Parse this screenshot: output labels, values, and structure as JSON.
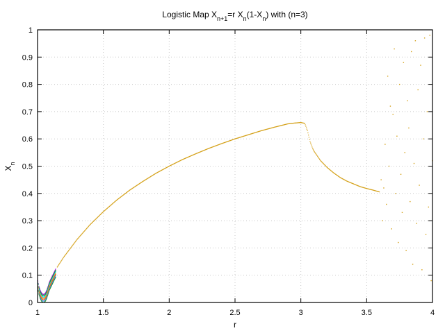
{
  "chart_data": {
    "type": "scatter",
    "title": {
      "prefix": "Logistic Map X",
      "sub1": "n+1",
      "mid1": "=r X",
      "sub2": "n",
      "mid2": "(1-X",
      "sub3": "n",
      "suffix": ") with (n=3)"
    },
    "xlabel": "r",
    "ylabel": {
      "main": "X",
      "sub": "n"
    },
    "xlim": [
      1,
      4
    ],
    "ylim": [
      0,
      1
    ],
    "xticks": [
      "1",
      "1.5",
      "2",
      "2.5",
      "3",
      "3.5",
      "4"
    ],
    "yticks": [
      "0",
      "0.1",
      "0.2",
      "0.3",
      "0.4",
      "0.5",
      "0.6",
      "0.7",
      "0.8",
      "0.9",
      "1"
    ],
    "grid": true,
    "colors": {
      "main": "#d4a017",
      "low_r_series": [
        "#9400d3",
        "#00a000",
        "#00bfff",
        "#e6a000",
        "#ff4500",
        "#1e90ff",
        "#228b22"
      ]
    },
    "series": [
      {
        "x": [
          1.15,
          1.2,
          1.3,
          1.4,
          1.5,
          1.6,
          1.7,
          1.8,
          1.9,
          2.0,
          2.1,
          2.2,
          2.3,
          2.4,
          2.5,
          2.6,
          2.7,
          2.8,
          2.9,
          2.95,
          3.0,
          3.03,
          3.05,
          3.07,
          3.09,
          3.1,
          3.15,
          3.2,
          3.25,
          3.3,
          3.35,
          3.4,
          3.45,
          3.5,
          3.55,
          3.6
        ],
        "y": [
          0.13,
          0.167,
          0.231,
          0.286,
          0.333,
          0.375,
          0.412,
          0.444,
          0.474,
          0.5,
          0.524,
          0.545,
          0.565,
          0.583,
          0.6,
          0.615,
          0.63,
          0.643,
          0.655,
          0.658,
          0.66,
          0.657,
          0.63,
          0.59,
          0.565,
          0.555,
          0.52,
          0.495,
          0.475,
          0.458,
          0.445,
          0.435,
          0.425,
          0.418,
          0.412,
          0.405
        ]
      },
      {
        "x": [
          1.0,
          1.01,
          1.02,
          1.03,
          1.04,
          1.05,
          1.06,
          1.07,
          1.08,
          1.09,
          1.1,
          1.11,
          1.12,
          1.13,
          1.14
        ],
        "y": [
          0.085,
          0.06,
          0.045,
          0.035,
          0.03,
          0.03,
          0.035,
          0.045,
          0.06,
          0.075,
          0.085,
          0.095,
          0.105,
          0.115,
          0.125
        ]
      },
      {
        "x": [
          3.61,
          3.62,
          3.63,
          3.64,
          3.65,
          3.66,
          3.67,
          3.68,
          3.69,
          3.7,
          3.71,
          3.72,
          3.73,
          3.74,
          3.75,
          3.76,
          3.77,
          3.78,
          3.79,
          3.8,
          3.81,
          3.82,
          3.83,
          3.84,
          3.85,
          3.86,
          3.87,
          3.88,
          3.89,
          3.9,
          3.91,
          3.92,
          3.93,
          3.94,
          3.95,
          3.96,
          3.97,
          3.98,
          3.99,
          4.0
        ],
        "y": [
          0.45,
          0.3,
          0.42,
          0.58,
          0.36,
          0.83,
          0.5,
          0.72,
          0.27,
          0.69,
          0.93,
          0.4,
          0.61,
          0.22,
          0.8,
          0.47,
          0.33,
          0.88,
          0.55,
          0.19,
          0.74,
          0.64,
          0.37,
          0.92,
          0.14,
          0.51,
          0.96,
          0.29,
          0.78,
          0.43,
          0.87,
          0.12,
          0.6,
          0.97,
          0.25,
          0.7,
          0.35,
          0.98,
          0.08,
          0.52
        ]
      }
    ]
  }
}
